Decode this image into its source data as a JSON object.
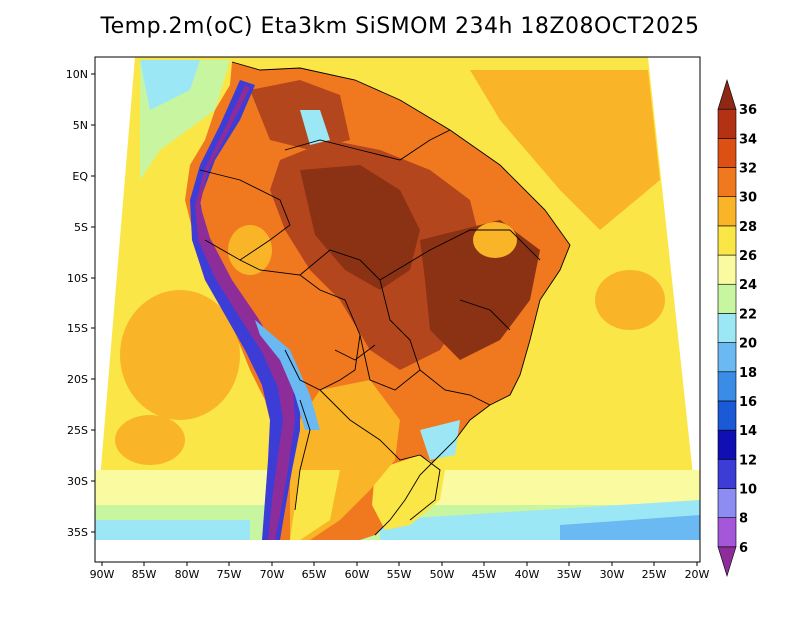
{
  "title": "Temp.2m(oC) Eta3km SiSMOM 234h 18Z08OCT2025",
  "lat_labels": [
    "10N",
    "5N",
    "EQ",
    "5S",
    "10S",
    "15S",
    "20S",
    "25S",
    "30S",
    "35S"
  ],
  "lon_labels": [
    "90W",
    "85W",
    "80W",
    "75W",
    "70W",
    "65W",
    "60W",
    "55W",
    "50W",
    "45W",
    "40W",
    "35W",
    "30W",
    "25W",
    "20W"
  ],
  "colorbar": {
    "levels": [
      "6",
      "8",
      "10",
      "12",
      "14",
      "16",
      "18",
      "20",
      "22",
      "24",
      "26",
      "28",
      "30",
      "32",
      "34",
      "36"
    ],
    "colors": [
      "#8c2d9a",
      "#a457d9",
      "#8c8cf2",
      "#3c3cd7",
      "#0f0fb4",
      "#1a5ad7",
      "#3a8ce6",
      "#6ab9f2",
      "#9be7f5",
      "#c8f5a0",
      "#fafaa0",
      "#fae646",
      "#fab428",
      "#f0781e",
      "#dc5014",
      "#b43214",
      "#8c2814"
    ]
  },
  "legend_colors": {
    "ocean_warm": "#fab428",
    "ocean_mid": "#fae646",
    "ocean_cool": "#fafaa0",
    "land_hot": "#b4461e",
    "land_very_hot": "#8c3214",
    "andes_cold": "#3c3cd7"
  }
}
